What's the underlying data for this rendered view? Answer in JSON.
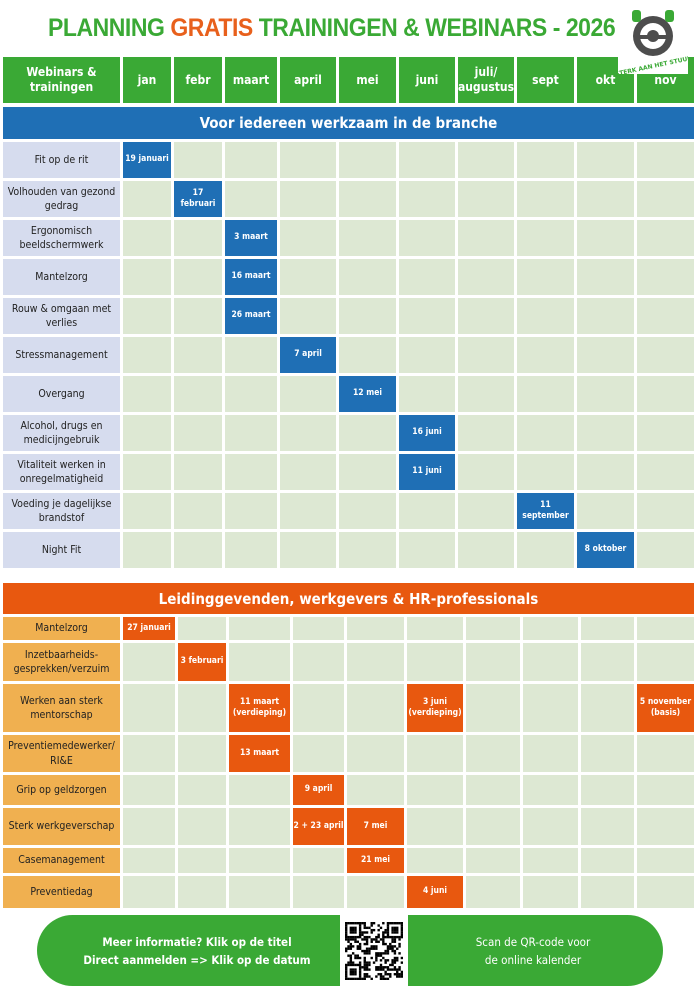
{
  "title": {
    "part1": "PLANNING ",
    "part2": "GRATIS",
    "part3": " TRAININGEN & WEBINARS - 2026"
  },
  "logo_text": "STERK AAN HET STUUR",
  "colors": {
    "green": "#3aa935",
    "orange": "#e8580f",
    "blue": "#1f6fb5"
  },
  "header": [
    "Webinars & trainingen",
    "jan",
    "febr",
    "maart",
    "april",
    "mei",
    "juni",
    "juli/ augustus",
    "sept",
    "okt",
    "nov"
  ],
  "section1": {
    "title": "Voor iedereen werkzaam in de branche",
    "rows": [
      {
        "label": "Fit op de rit",
        "col": 1,
        "date": "19 januari"
      },
      {
        "label": "Volhouden van gezond gedrag",
        "col": 2,
        "date": "17 februari"
      },
      {
        "label": "Ergonomisch beeldschermwerk",
        "col": 3,
        "date": "3 maart"
      },
      {
        "label": "Mantelzorg",
        "col": 3,
        "date": "16 maart"
      },
      {
        "label": "Rouw & omgaan met verlies",
        "col": 3,
        "date": "26 maart"
      },
      {
        "label": "Stressmanagement",
        "col": 4,
        "date": "7 april"
      },
      {
        "label": "Overgang",
        "col": 5,
        "date": "12 mei"
      },
      {
        "label": "Alcohol, drugs en medicijngebruik",
        "col": 6,
        "date": "16 juni"
      },
      {
        "label": "Vitaliteit werken in onregelmatigheid",
        "col": 6,
        "date": "11 juni"
      },
      {
        "label": "Voeding je dagelijkse brandstof",
        "col": 8,
        "date": "11 september"
      },
      {
        "label": "Night Fit",
        "col": 9,
        "date": "8 oktober"
      }
    ]
  },
  "section2": {
    "title": "Leidinggevenden, werkgevers & HR-professionals",
    "rows": [
      {
        "label": "Mantelzorg",
        "events": [
          {
            "col": 1,
            "date": "27 januari"
          }
        ]
      },
      {
        "label": "Inzetbaarheids-gesprekken/verzuim",
        "events": [
          {
            "col": 2,
            "date": "3 februari"
          }
        ]
      },
      {
        "label": "Werken aan sterk mentorschap",
        "events": [
          {
            "col": 3,
            "date": "11 maart (verdieping)"
          },
          {
            "col": 6,
            "date": "3 juni (verdieping)"
          },
          {
            "col": 10,
            "date": "5 november (basis)"
          }
        ]
      },
      {
        "label": "Preventiemedewerker/ RI&E",
        "events": [
          {
            "col": 3,
            "date": "13 maart"
          }
        ]
      },
      {
        "label": "Grip op geldzorgen",
        "events": [
          {
            "col": 4,
            "date": "9 april"
          }
        ]
      },
      {
        "label": "Sterk werkgeverschap",
        "events": [
          {
            "col": 4,
            "date": "2 + 23 april"
          },
          {
            "col": 5,
            "date": "7 mei"
          }
        ]
      },
      {
        "label": "Casemanagement",
        "events": [
          {
            "col": 5,
            "date": "21 mei"
          }
        ]
      },
      {
        "label": "Preventiedag",
        "events": [
          {
            "col": 6,
            "date": "4 juni"
          }
        ]
      }
    ]
  },
  "footer": {
    "left_line1": "Meer informatie? Klik op de titel",
    "left_line2": "Direct aanmelden => Klik op de datum",
    "right_line1": "Scan de QR-code voor",
    "right_line2": "de online kalender"
  }
}
